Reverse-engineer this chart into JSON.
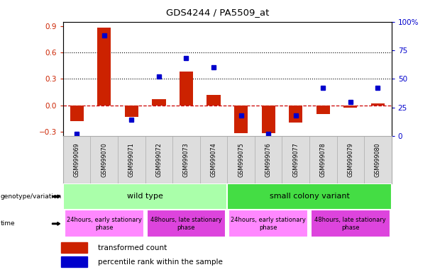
{
  "title": "GDS4244 / PA5509_at",
  "samples": [
    "GSM999069",
    "GSM999070",
    "GSM999071",
    "GSM999072",
    "GSM999073",
    "GSM999074",
    "GSM999075",
    "GSM999076",
    "GSM999077",
    "GSM999078",
    "GSM999079",
    "GSM999080"
  ],
  "red_bars": [
    -0.18,
    0.88,
    -0.13,
    0.07,
    0.38,
    0.12,
    -0.32,
    -0.32,
    -0.2,
    -0.1,
    -0.03,
    0.02
  ],
  "blue_dots_pct": [
    2,
    88,
    14,
    52,
    68,
    60,
    18,
    2,
    18,
    42,
    30,
    42
  ],
  "ylim_left": [
    -0.35,
    0.95
  ],
  "ylim_right": [
    0,
    100
  ],
  "yticks_left": [
    -0.3,
    0.0,
    0.3,
    0.6,
    0.9
  ],
  "yticks_right": [
    0,
    25,
    50,
    75,
    100
  ],
  "genotype_groups": [
    {
      "label": "wild type",
      "start": 0,
      "end": 6,
      "color": "#aaffaa"
    },
    {
      "label": "small colony variant",
      "start": 6,
      "end": 12,
      "color": "#44dd44"
    }
  ],
  "time_groups": [
    {
      "label": "24hours, early stationary\nphase",
      "start": 0,
      "end": 3,
      "color": "#ff88ff"
    },
    {
      "label": "48hours, late stationary\nphase",
      "start": 3,
      "end": 6,
      "color": "#dd44dd"
    },
    {
      "label": "24hours, early stationary\nphase",
      "start": 6,
      "end": 9,
      "color": "#ff88ff"
    },
    {
      "label": "48hours, late stationary\nphase",
      "start": 9,
      "end": 12,
      "color": "#dd44dd"
    }
  ],
  "red_bar_color": "#cc2200",
  "blue_dot_color": "#0000cc",
  "zero_line_color": "#cc0000",
  "bg_color": "#ffffff",
  "left_axis_color": "#cc2200",
  "right_axis_color": "#0000cc",
  "sample_bg_color": "#dddddd"
}
